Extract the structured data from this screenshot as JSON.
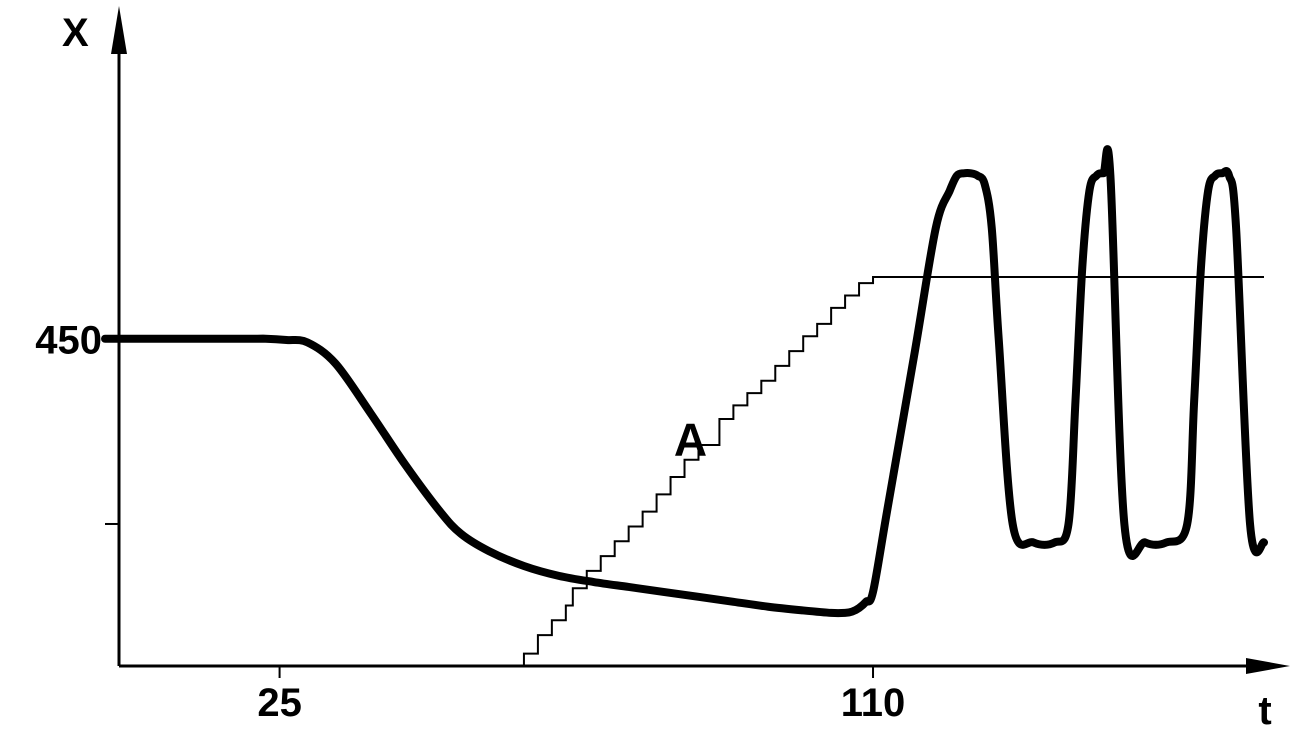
{
  "chart_data": {
    "type": "line",
    "title": "",
    "xlabel": "t",
    "ylabel": "X",
    "x_ticks": [
      25,
      110
    ],
    "x_tick_labels": [
      "25",
      "110"
    ],
    "y_ticks": [
      450
    ],
    "y_tick_labels": [
      "450"
    ],
    "minor_y_ticks": [
      300
    ],
    "xlim": [
      2,
      166
    ],
    "ylim": [
      185,
      700
    ],
    "grid": false,
    "legend": "none",
    "series": [
      {
        "name": "",
        "style": "thick",
        "x": [
          0,
          20,
          23,
          26,
          29,
          33,
          38,
          43,
          48,
          51,
          55,
          60,
          65,
          70,
          75,
          80,
          85,
          90,
          95,
          100,
          104,
          106,
          107,
          108,
          109,
          110,
          112,
          116,
          119,
          121,
          122,
          123,
          124,
          125,
          126,
          127,
          128,
          130,
          133,
          136,
          138,
          139,
          140,
          141,
          142,
          143,
          144,
          146,
          149,
          152,
          155,
          156,
          157,
          158,
          159,
          160,
          161,
          162,
          164,
          166
        ],
        "y": [
          450,
          450,
          450,
          449,
          447,
          430,
          390,
          348,
          310,
          292,
          278,
          266,
          258,
          253,
          249,
          245,
          241,
          237,
          233,
          230,
          228,
          228,
          229,
          232,
          237,
          245,
          310,
          440,
          540,
          570,
          582,
          584,
          584,
          582,
          575,
          540,
          450,
          300,
          285,
          285,
          300,
          400,
          510,
          570,
          582,
          584,
          582,
          300,
          285,
          285,
          300,
          400,
          510,
          570,
          582,
          584,
          582,
          540,
          300,
          285
        ]
      },
      {
        "name": "",
        "style": "staircase",
        "label": "A",
        "x": [
          60,
          62,
          64,
          66,
          67,
          69,
          71,
          73,
          75,
          77,
          79,
          81,
          83,
          85,
          88,
          90,
          92,
          94,
          96,
          98,
          100,
          102,
          104,
          106,
          108,
          110,
          166
        ],
        "y": [
          195,
          210,
          222,
          234,
          248,
          262,
          274,
          286,
          298,
          310,
          324,
          338,
          352,
          364,
          385,
          396,
          406,
          416,
          428,
          440,
          452,
          462,
          475,
          485,
          495,
          500,
          500
        ]
      }
    ],
    "annotations": [
      {
        "text": "A",
        "x": 83,
        "y": 370
      }
    ]
  }
}
